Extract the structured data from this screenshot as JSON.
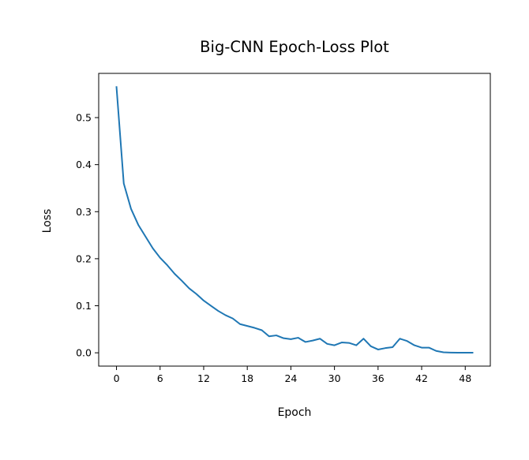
{
  "chart_data": {
    "type": "line",
    "title": "Big-CNN Epoch-Loss Plot",
    "xlabel": "Epoch",
    "ylabel": "Loss",
    "xlim": [
      -2.45,
      51.45
    ],
    "ylim": [
      -0.0283,
      0.594
    ],
    "x_ticks": [
      0,
      6,
      12,
      18,
      24,
      30,
      36,
      42,
      48
    ],
    "y_ticks": [
      0.0,
      0.1,
      0.2,
      0.3,
      0.4,
      0.5
    ],
    "grid": false,
    "line_color": "#1f77b4",
    "series": [
      {
        "x": [
          0,
          1,
          2,
          3,
          4,
          5,
          6,
          7,
          8,
          9,
          10,
          11,
          12,
          13,
          14,
          15,
          16,
          17,
          18,
          19,
          20,
          21,
          22,
          23,
          24,
          25,
          26,
          27,
          28,
          29,
          30,
          31,
          32,
          33,
          34,
          35,
          36,
          37,
          38,
          39,
          40,
          41,
          42,
          43,
          44,
          45,
          46,
          47,
          48,
          49
        ],
        "values": [
          0.565,
          0.36,
          0.306,
          0.272,
          0.247,
          0.222,
          0.202,
          0.186,
          0.168,
          0.153,
          0.137,
          0.125,
          0.111,
          0.1,
          0.089,
          0.08,
          0.073,
          0.061,
          0.057,
          0.053,
          0.048,
          0.035,
          0.037,
          0.031,
          0.029,
          0.032,
          0.023,
          0.026,
          0.03,
          0.019,
          0.016,
          0.022,
          0.021,
          0.016,
          0.03,
          0.014,
          0.007,
          0.01,
          0.012,
          0.03,
          0.025,
          0.016,
          0.011,
          0.011,
          0.004,
          0.001,
          0.0005,
          0.0003,
          0.0003,
          0.0002
        ]
      }
    ]
  }
}
